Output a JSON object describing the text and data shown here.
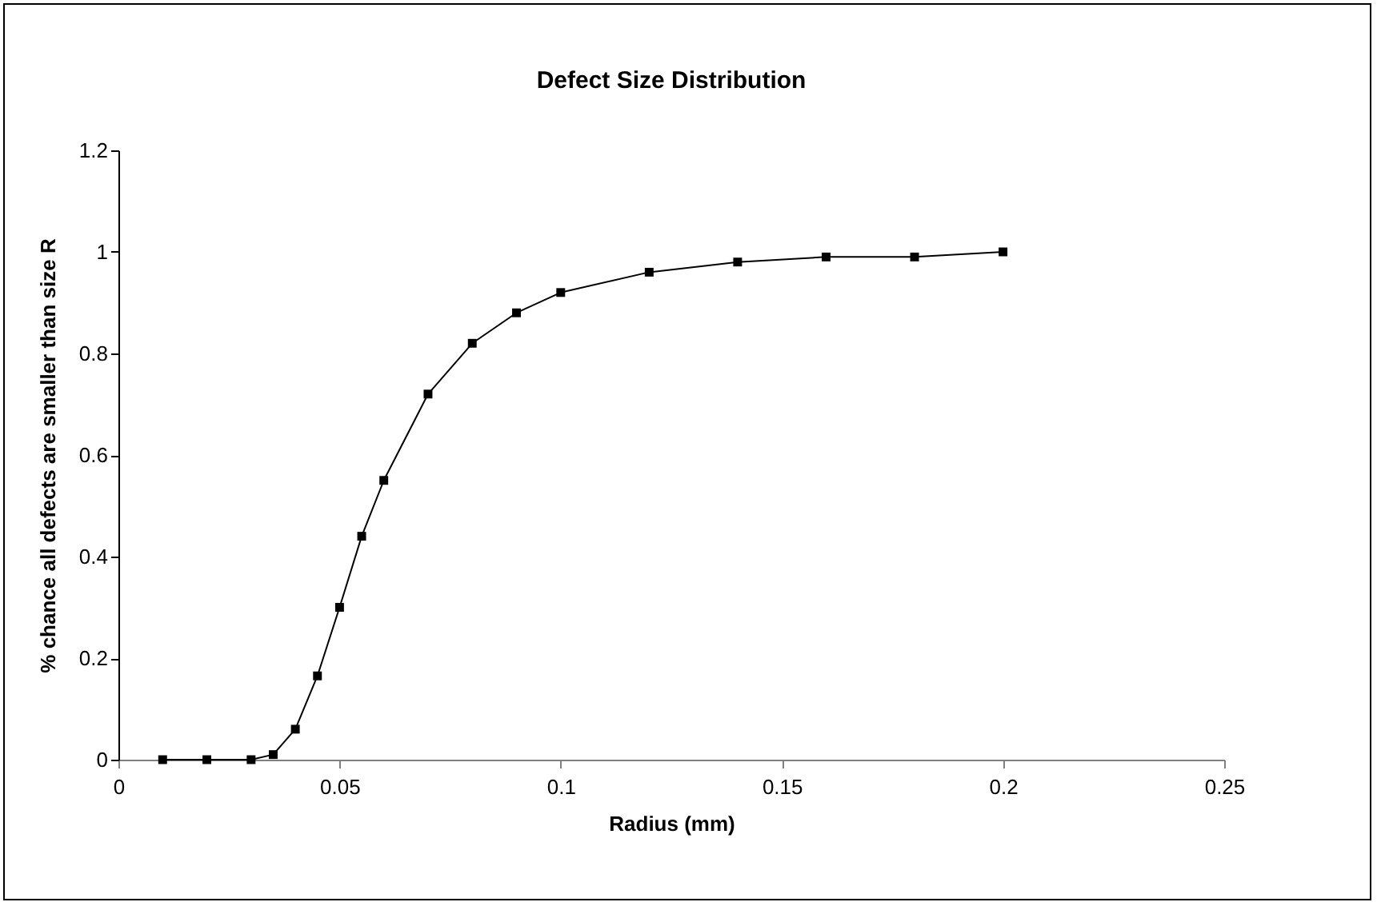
{
  "chart_data": {
    "type": "line",
    "title": "Defect Size Distribution",
    "xlabel": "Radius (mm)",
    "ylabel": "% chance all defects are smaller than size R",
    "x": [
      0.01,
      0.02,
      0.03,
      0.035,
      0.04,
      0.045,
      0.05,
      0.055,
      0.06,
      0.07,
      0.08,
      0.09,
      0.1,
      0.12,
      0.14,
      0.16,
      0.18,
      0.2
    ],
    "series": [
      {
        "color": "#000000",
        "values": [
          0,
          0,
          0,
          0.01,
          0.06,
          0.165,
          0.3,
          0.44,
          0.55,
          0.72,
          0.82,
          0.88,
          0.92,
          0.96,
          0.98,
          0.99,
          0.99,
          1
        ]
      }
    ],
    "xlim": [
      0,
      0.25
    ],
    "xticks": [
      0,
      0.05,
      0.1,
      0.15,
      0.2,
      0.25
    ],
    "ylim": [
      0,
      1.2
    ],
    "yticks": [
      0,
      0.2,
      0.4,
      0.6,
      0.8,
      1,
      1.2
    ],
    "grid": false,
    "marker": "square",
    "line_style": "solid"
  }
}
